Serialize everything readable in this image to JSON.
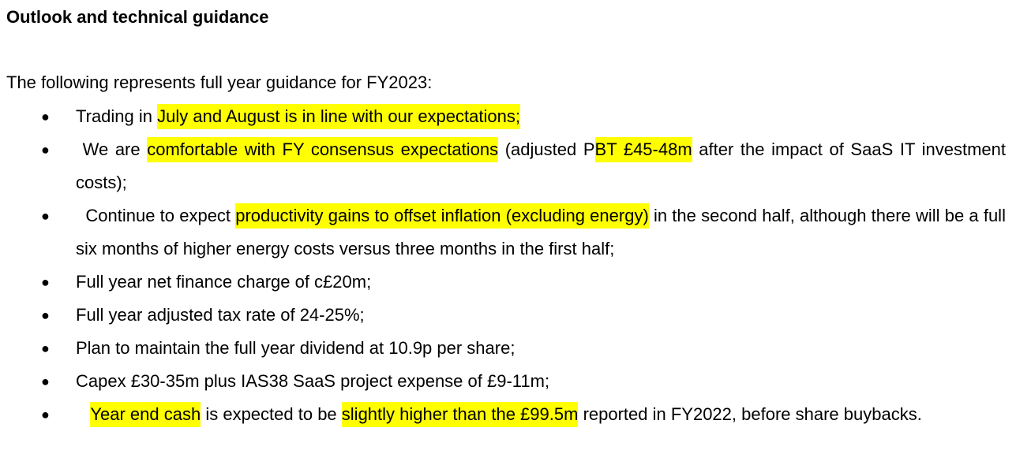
{
  "heading": "Outlook and technical guidance",
  "intro": "The following represents full year guidance for FY2023:",
  "bullet_glyph": "●",
  "highlight_color": "#ffff00",
  "items": [
    {
      "pre": "Trading in",
      "hl1": "July and August is in line with our expectations;"
    },
    {
      "pre": "We are",
      "hl1": "comfortable with FY consensus expectations",
      "mid": "(adjusted P",
      "hl2": "BT £45-48m",
      "post": "after the impact of SaaS IT investment costs);"
    },
    {
      "pre": "Continue to expect",
      "hl1": "productivity gains to offset inflation (excluding energy)",
      "post": "in the second half, although there will be a full six months of higher energy costs versus three months in the first half;"
    },
    {
      "text": "Full year net finance charge of c£20m;"
    },
    {
      "text": "Full year adjusted tax rate of 24-25%;"
    },
    {
      "text": "Plan to maintain the full year dividend at 10.9p per share;"
    },
    {
      "text": "Capex £30-35m plus IAS38 SaaS project expense of £9-11m;"
    },
    {
      "hl1": "Year end cash",
      "mid": "is expected to be",
      "hl2": "slightly higher than the £99.5m",
      "post": "reported in FY2022, before share buybacks."
    }
  ]
}
